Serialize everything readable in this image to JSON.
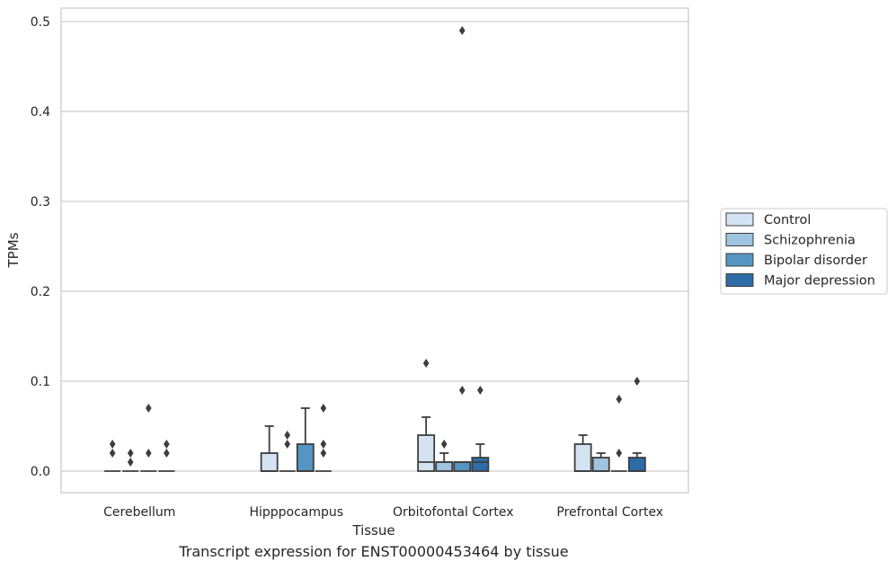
{
  "chart_data": {
    "type": "box",
    "title": "",
    "caption": "Transcript expression for ENST00000453464 by tissue",
    "xlabel": "Tissue",
    "ylabel": "TPMs",
    "ylim": [
      -0.024,
      0.515
    ],
    "yticks": [
      0.0,
      0.1,
      0.2,
      0.3,
      0.4,
      0.5
    ],
    "ytick_labels": [
      "0.0",
      "0.1",
      "0.2",
      "0.3",
      "0.4",
      "0.5"
    ],
    "grid": true,
    "legend_position": "right",
    "categories": [
      "Cerebellum",
      "Hipppocampus",
      "Orbitofontal Cortex",
      "Prefrontal Cortex"
    ],
    "series": [
      {
        "name": "Control",
        "color": "#d3e3f2",
        "boxes": [
          {
            "q1": 0.0,
            "median": 0.0,
            "q3": 0.0,
            "whisker_low": 0.0,
            "whisker_high": 0.0,
            "outliers": [
              0.02,
              0.03
            ]
          },
          {
            "q1": 0.0,
            "median": 0.0,
            "q3": 0.02,
            "whisker_low": 0.0,
            "whisker_high": 0.05,
            "outliers": []
          },
          {
            "q1": 0.0,
            "median": 0.01,
            "q3": 0.04,
            "whisker_low": 0.0,
            "whisker_high": 0.06,
            "outliers": [
              0.12
            ]
          },
          {
            "q1": 0.0,
            "median": 0.0,
            "q3": 0.03,
            "whisker_low": 0.0,
            "whisker_high": 0.04,
            "outliers": []
          }
        ]
      },
      {
        "name": "Schizophrenia",
        "color": "#9fc4e0",
        "boxes": [
          {
            "q1": 0.0,
            "median": 0.0,
            "q3": 0.0,
            "whisker_low": 0.0,
            "whisker_high": 0.0,
            "outliers": [
              0.01,
              0.02
            ]
          },
          {
            "q1": 0.0,
            "median": 0.0,
            "q3": 0.0,
            "whisker_low": 0.0,
            "whisker_high": 0.0,
            "outliers": [
              0.03,
              0.04
            ]
          },
          {
            "q1": 0.0,
            "median": 0.01,
            "q3": 0.01,
            "whisker_low": 0.0,
            "whisker_high": 0.02,
            "outliers": [
              0.03
            ]
          },
          {
            "q1": 0.0,
            "median": 0.0,
            "q3": 0.015,
            "whisker_low": 0.0,
            "whisker_high": 0.02,
            "outliers": []
          }
        ]
      },
      {
        "name": "Bipolar disorder",
        "color": "#5595c3",
        "boxes": [
          {
            "q1": 0.0,
            "median": 0.0,
            "q3": 0.0,
            "whisker_low": 0.0,
            "whisker_high": 0.0,
            "outliers": [
              0.02,
              0.07
            ]
          },
          {
            "q1": 0.0,
            "median": 0.0,
            "q3": 0.03,
            "whisker_low": 0.0,
            "whisker_high": 0.07,
            "outliers": []
          },
          {
            "q1": 0.0,
            "median": 0.01,
            "q3": 0.01,
            "whisker_low": 0.0,
            "whisker_high": 0.01,
            "outliers": [
              0.09,
              0.49
            ]
          },
          {
            "q1": 0.0,
            "median": 0.0,
            "q3": 0.0,
            "whisker_low": 0.0,
            "whisker_high": 0.0,
            "outliers": [
              0.02,
              0.08
            ]
          }
        ]
      },
      {
        "name": "Major depression",
        "color": "#2e6ca8",
        "boxes": [
          {
            "q1": 0.0,
            "median": 0.0,
            "q3": 0.0,
            "whisker_low": 0.0,
            "whisker_high": 0.0,
            "outliers": [
              0.02,
              0.03
            ]
          },
          {
            "q1": 0.0,
            "median": 0.0,
            "q3": 0.0,
            "whisker_low": 0.0,
            "whisker_high": 0.0,
            "outliers": [
              0.02,
              0.03,
              0.07
            ]
          },
          {
            "q1": 0.0,
            "median": 0.01,
            "q3": 0.015,
            "whisker_low": 0.0,
            "whisker_high": 0.03,
            "outliers": [
              0.09
            ]
          },
          {
            "q1": 0.0,
            "median": 0.0,
            "q3": 0.015,
            "whisker_low": 0.0,
            "whisker_high": 0.02,
            "outliers": [
              0.1
            ]
          }
        ]
      }
    ]
  }
}
